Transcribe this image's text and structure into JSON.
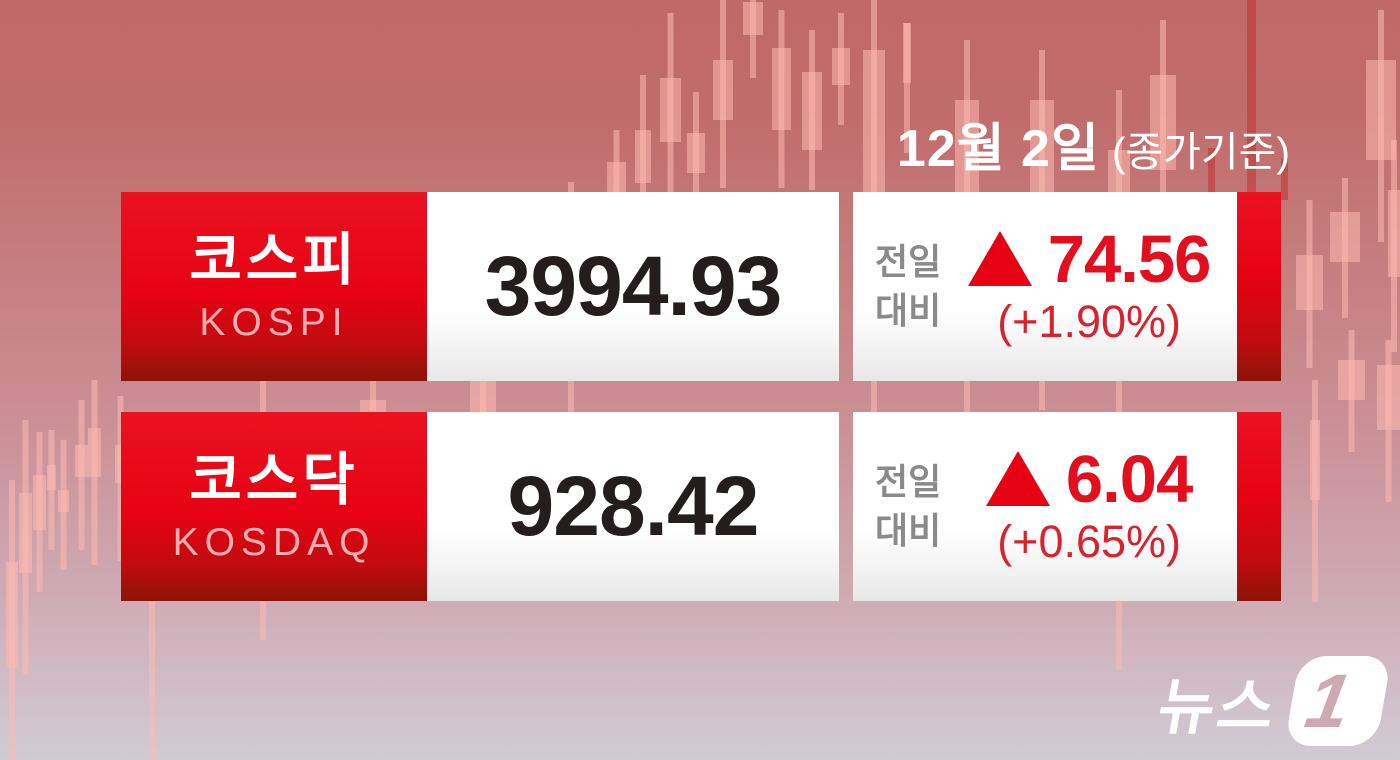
{
  "header": {
    "date": "12월 2일",
    "note": "(종가기준)"
  },
  "rows": [
    {
      "name_ko": "코스피",
      "name_en": "KOSPI",
      "value": "3994.93",
      "label_line1": "전일",
      "label_line2": "대비",
      "direction": "up",
      "change": "74.56",
      "change_pct": "(+1.90%)"
    },
    {
      "name_ko": "코스닥",
      "name_en": "KOSDAQ",
      "value": "928.42",
      "label_line1": "전일",
      "label_line2": "대비",
      "direction": "up",
      "change": "6.04",
      "change_pct": "(+0.65%)"
    }
  ],
  "logo": {
    "text": "뉴스",
    "numeral": "1"
  },
  "colors": {
    "brand_red": "#e60213",
    "dark_red": "#8c1408",
    "value_black": "#241d1d",
    "label_gray": "#8a8a8a",
    "change_red": "#e2101e",
    "subtitle_pink": "#f6aeb2",
    "bg_top": "#bf6a68",
    "bg_bottom": "#d1cbd3",
    "candle": "rgba(255,186,176,0.55)",
    "dark_wick": "rgba(190,40,40,0.48)"
  },
  "chart_data": {
    "type": "table",
    "title": "12월 2일 (종가기준)",
    "columns": [
      "index",
      "close",
      "change",
      "change_pct",
      "direction"
    ],
    "rows": [
      {
        "index": "코스피 (KOSPI)",
        "close": 3994.93,
        "change": 74.56,
        "change_pct": 1.9,
        "direction": "up"
      },
      {
        "index": "코스닥 (KOSDAQ)",
        "close": 928.42,
        "change": 6.04,
        "change_pct": 0.65,
        "direction": "up"
      }
    ]
  },
  "background": {
    "candles": [
      [
        6,
        12,
        562,
        106,
        480,
        280
      ],
      [
        19,
        13,
        493,
        80,
        420,
        255
      ],
      [
        33,
        13,
        475,
        55,
        432,
        160
      ],
      [
        47,
        9,
        465,
        25,
        430,
        120
      ],
      [
        58,
        11,
        490,
        22,
        440,
        130
      ],
      [
        75,
        13,
        445,
        32,
        400,
        150
      ],
      [
        88,
        13,
        428,
        49,
        380,
        185
      ],
      [
        115,
        11,
        445,
        38,
        396,
        165
      ],
      [
        140,
        24,
        490,
        100,
        430,
        330
      ],
      [
        250,
        26,
        430,
        110,
        340,
        300
      ],
      [
        360,
        26,
        400,
        90,
        320,
        262
      ],
      [
        470,
        26,
        360,
        100,
        282,
        280
      ],
      [
        566,
        10,
        428,
        62,
        182,
        380
      ],
      [
        607,
        19,
        162,
        31,
        130,
        140
      ],
      [
        635,
        16,
        130,
        53,
        75,
        230
      ],
      [
        660,
        21,
        78,
        64,
        13,
        190
      ],
      [
        687,
        18,
        133,
        40,
        92,
        170
      ],
      [
        713,
        20,
        60,
        60,
        0,
        188
      ],
      [
        743,
        20,
        2,
        33,
        0,
        78
      ],
      [
        772,
        19,
        48,
        82,
        10,
        178
      ],
      [
        802,
        20,
        72,
        78,
        30,
        160
      ],
      [
        832,
        18,
        48,
        37,
        13,
        112
      ],
      [
        863,
        22,
        50,
        142,
        0,
        420
      ],
      [
        903,
        8,
        23,
        60,
        23,
        130
      ],
      [
        955,
        24,
        100,
        120,
        40,
        372
      ],
      [
        1030,
        24,
        100,
        100,
        50,
        360
      ],
      [
        1108,
        22,
        150,
        120,
        90,
        580
      ],
      [
        1150,
        26,
        75,
        95,
        20,
        360
      ],
      [
        1296,
        27,
        255,
        55,
        200,
        168
      ],
      [
        1330,
        30,
        212,
        50,
        178,
        140
      ],
      [
        1366,
        30,
        60,
        100,
        10,
        232
      ],
      [
        1388,
        12,
        190,
        87,
        140,
        212
      ],
      [
        1338,
        27,
        360,
        40,
        330,
        122
      ],
      [
        1377,
        23,
        365,
        65,
        340,
        162
      ],
      [
        1310,
        10,
        420,
        80,
        380,
        222
      ]
    ],
    "dark_wicks": [
      [
        1247,
        0,
        9,
        193
      ],
      [
        1208,
        148,
        7,
        45
      ],
      [
        1281,
        158,
        7,
        42
      ]
    ]
  }
}
